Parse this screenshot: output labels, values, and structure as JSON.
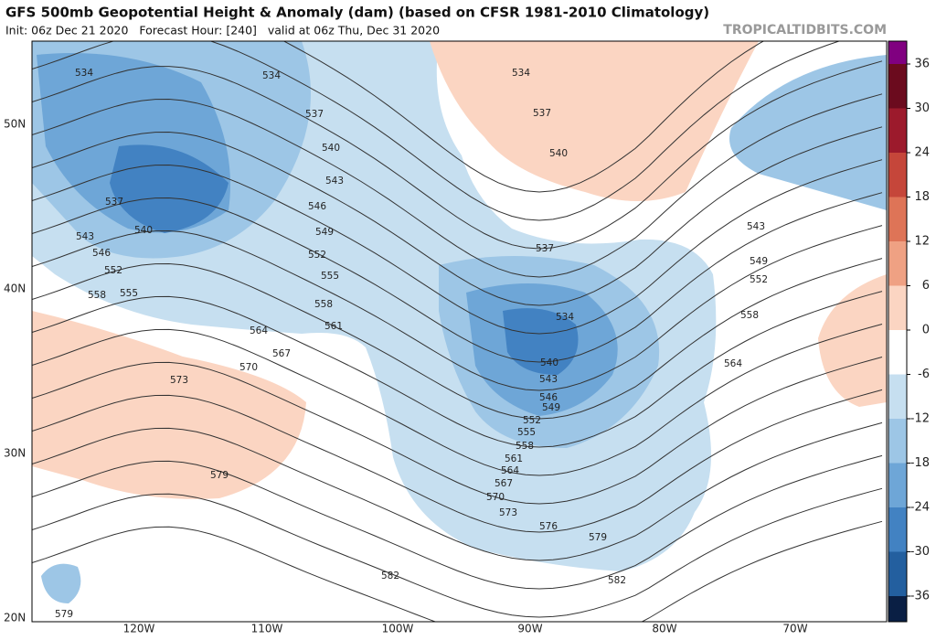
{
  "header": {
    "title": "GFS 500mb Geopotential Height & Anomaly (dam) (based on CFSR 1981-2010 Climatology)",
    "subtitle": "Init: 06z Dec 21 2020   Forecast Hour: [240]   valid at 06z Thu, Dec 31 2020",
    "watermark": "TROPICALTIDBITS.COM"
  },
  "map": {
    "lat_labels": [
      "50N",
      "40N",
      "30N",
      "20N"
    ],
    "lon_labels": [
      "120W",
      "110W",
      "100W",
      "90W",
      "80W",
      "70W"
    ],
    "contour_labels": [
      534,
      534,
      537,
      534,
      537,
      540,
      540,
      543,
      546,
      549,
      552,
      555,
      558,
      561,
      564,
      567,
      570,
      573,
      579,
      537,
      540,
      543,
      546,
      552,
      558,
      555,
      537,
      534,
      540,
      543,
      546,
      549,
      552,
      555,
      558,
      561,
      564,
      567,
      570,
      573,
      576,
      579,
      582,
      582,
      579,
      543,
      549,
      552,
      558,
      564
    ]
  },
  "colorbar": {
    "ticks": [
      36,
      30,
      24,
      18,
      12,
      6,
      0,
      -6,
      -12,
      -18,
      -24,
      -30,
      -36
    ],
    "colors": [
      "#6b0b1e",
      "#9c1a2c",
      "#c5463a",
      "#de7457",
      "#efa183",
      "#fbd5c2",
      "#ffffff",
      "#c6dff0",
      "#9dc6e6",
      "#6ea6d7",
      "#4282c2",
      "#235f9f",
      "#123d73"
    ],
    "cap_colors": [
      "#800080",
      "#0a1f44"
    ]
  }
}
